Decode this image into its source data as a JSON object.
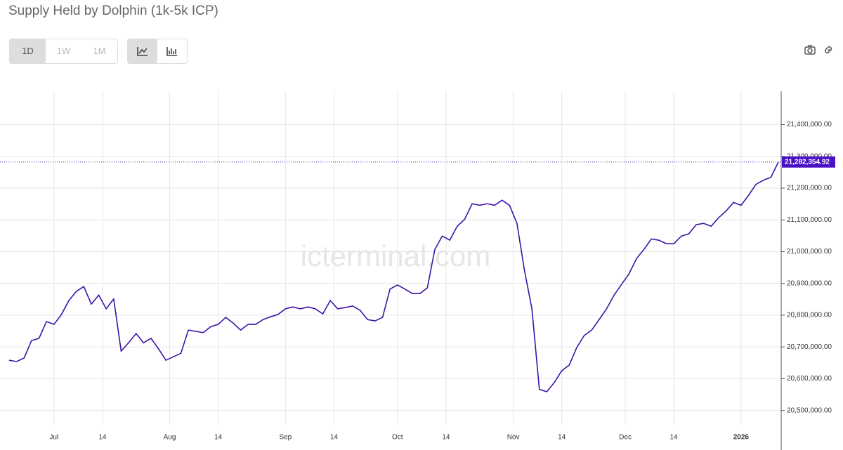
{
  "chart_data": {
    "type": "line",
    "title": "Supply Held by Dolphin (1k-5k ICP)",
    "intervals": [
      "1D",
      "1W",
      "1M"
    ],
    "watermark": "icterminal.com",
    "color": "#3d12a8",
    "current_value_label": "21,282,354.92",
    "xlim": [
      0,
      103
    ],
    "xticks": [
      {
        "value": 6,
        "label": "Jul"
      },
      {
        "value": 12.5,
        "label": "14"
      },
      {
        "value": 21.5,
        "label": "Aug"
      },
      {
        "value": 28,
        "label": "14"
      },
      {
        "value": 37,
        "label": "Sep"
      },
      {
        "value": 43.5,
        "label": "14"
      },
      {
        "value": 52,
        "label": "Oct"
      },
      {
        "value": 58.5,
        "label": "14"
      },
      {
        "value": 67.5,
        "label": "Nov"
      },
      {
        "value": 74,
        "label": "14"
      },
      {
        "value": 82.5,
        "label": "Dec"
      },
      {
        "value": 89,
        "label": "14"
      },
      {
        "value": 98,
        "label": "2026"
      }
    ],
    "ylim": [
      20455000,
      21505000
    ],
    "yticks": [
      {
        "value": 20500000,
        "label": "20,500,000.00"
      },
      {
        "value": 20600000,
        "label": "20,600,000.00"
      },
      {
        "value": 20700000,
        "label": "20,700,000.00"
      },
      {
        "value": 20800000,
        "label": "20,800,000.00"
      },
      {
        "value": 20900000,
        "label": "20,900,000.00"
      },
      {
        "value": 21000000,
        "label": "21,000,000.00"
      },
      {
        "value": 21100000,
        "label": "21,100,000.00"
      },
      {
        "value": 21200000,
        "label": "21,200,000.00"
      },
      {
        "value": 21300000,
        "label": "21,300,000.00"
      },
      {
        "value": 21400000,
        "label": "21,400,000.00"
      }
    ],
    "grid": true,
    "values": [
      20658000,
      20654000,
      20665000,
      20720000,
      20727000,
      20780000,
      20771000,
      20802000,
      20846000,
      20875000,
      20890000,
      20835000,
      20863000,
      20820000,
      20851000,
      20687000,
      20713000,
      20742000,
      20713000,
      20727000,
      20694000,
      20658000,
      20669000,
      20680000,
      20753000,
      20749000,
      20745000,
      20764000,
      20771000,
      20793000,
      20775000,
      20753000,
      20771000,
      20771000,
      20786000,
      20795000,
      20802000,
      20820000,
      20826000,
      20820000,
      20826000,
      20820000,
      20804000,
      20846000,
      20820000,
      20824000,
      20829000,
      20815000,
      20786000,
      20782000,
      20793000,
      20882000,
      20895000,
      20882000,
      20868000,
      20868000,
      20886000,
      21007000,
      21049000,
      21036000,
      21080000,
      21102000,
      21151000,
      21146000,
      21151000,
      21146000,
      21162000,
      21146000,
      21089000,
      20941000,
      20820000,
      20566000,
      20559000,
      20588000,
      20625000,
      20643000,
      20698000,
      20736000,
      20753000,
      20786000,
      20820000,
      20863000,
      20897000,
      20930000,
      20978000,
      21007000,
      21040000,
      21036000,
      21025000,
      21025000,
      21049000,
      21056000,
      21085000,
      21089000,
      21080000,
      21107000,
      21128000,
      21155000,
      21146000,
      21177000,
      21212000,
      21225000,
      21234000,
      21282354.92
    ]
  }
}
